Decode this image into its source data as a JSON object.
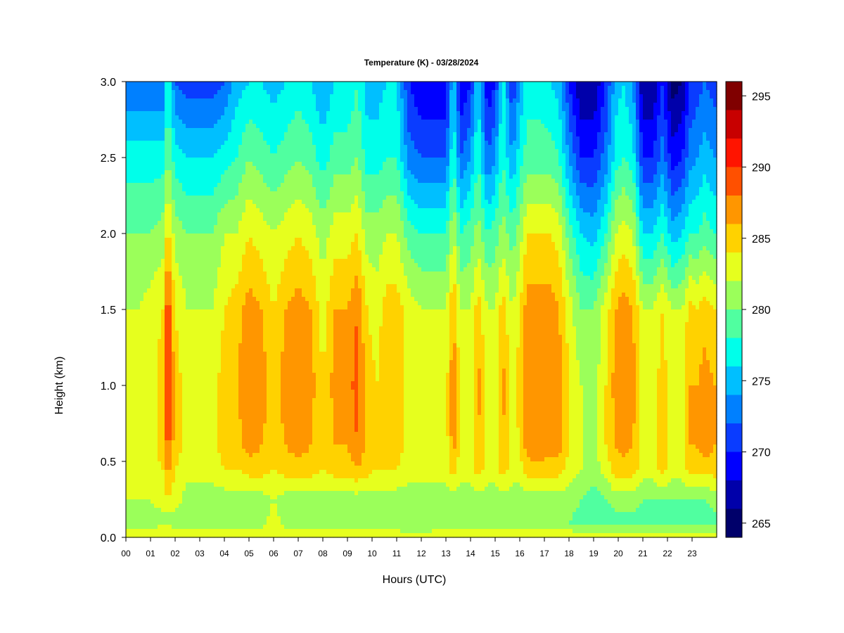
{
  "chart_data": {
    "type": "heatmap",
    "title": "Temperature (K) - 03/28/2024",
    "xlabel": "Hours (UTC)",
    "ylabel": "Height (km)",
    "xlim": [
      0,
      24
    ],
    "ylim": [
      0,
      3.0
    ],
    "x_ticks": [
      "00",
      "01",
      "02",
      "03",
      "04",
      "05",
      "06",
      "07",
      "08",
      "09",
      "10",
      "11",
      "12",
      "13",
      "14",
      "15",
      "16",
      "17",
      "18",
      "19",
      "20",
      "21",
      "22",
      "23"
    ],
    "y_ticks": [
      "0.0",
      "0.5",
      "1.0",
      "1.5",
      "2.0",
      "2.5",
      "3.0"
    ],
    "grid": false,
    "z_unit": "K",
    "colorbar": {
      "min": 264,
      "max": 296,
      "step": 2,
      "ticks": [
        "265",
        "270",
        "275",
        "280",
        "285",
        "290",
        "295"
      ],
      "colors": [
        "#00006a",
        "#0000aa",
        "#0000ff",
        "#0a3cff",
        "#0080ff",
        "#00bfff",
        "#00ffea",
        "#50ffa0",
        "#9bff5a",
        "#e6ff1e",
        "#ffd200",
        "#ff9600",
        "#ff5000",
        "#ff1400",
        "#c80000",
        "#800000"
      ]
    },
    "hours": [
      0.0,
      0.5,
      1.0,
      1.5,
      1.7,
      2.0,
      2.5,
      3.0,
      3.5,
      4.0,
      4.5,
      5.0,
      5.5,
      6.0,
      6.5,
      7.0,
      7.5,
      8.0,
      8.5,
      9.0,
      9.4,
      9.8,
      10.2,
      10.6,
      11.0,
      11.5,
      12.0,
      12.5,
      13.0,
      13.3,
      13.6,
      14.0,
      14.3,
      14.7,
      15.0,
      15.3,
      15.7,
      16.0,
      16.3,
      16.8,
      17.2,
      17.6,
      18.0,
      18.5,
      19.0,
      19.5,
      19.9,
      20.2,
      20.6,
      21.0,
      21.4,
      21.8,
      22.2,
      22.6,
      22.9,
      23.2,
      23.5,
      23.9
    ],
    "heights_km": [
      0.0,
      0.05,
      0.1,
      0.25,
      0.45,
      0.6,
      1.0,
      1.5,
      2.0,
      2.5,
      3.0
    ],
    "temperature_K": [
      [
        283,
        283,
        283,
        283,
        283,
        283,
        283,
        283,
        283,
        283,
        283,
        283,
        283,
        283,
        283,
        283,
        283,
        283,
        283,
        283,
        283,
        283,
        283,
        283,
        283,
        283,
        283,
        283,
        283,
        283,
        283,
        283,
        283,
        283,
        283,
        283,
        283,
        283,
        283,
        283,
        283,
        283,
        283,
        283,
        283,
        283,
        283,
        283,
        283,
        283,
        283,
        283,
        283,
        283,
        283,
        283,
        283,
        283
      ],
      [
        282,
        282,
        282,
        283,
        283,
        282,
        282,
        282,
        282,
        282,
        282,
        282,
        282,
        283,
        282,
        282,
        282,
        282,
        282,
        282,
        282,
        282,
        282,
        282,
        282,
        281,
        281,
        282,
        282,
        282,
        282,
        282,
        282,
        282,
        282,
        282,
        282,
        282,
        282,
        282,
        282,
        282,
        282,
        281,
        281,
        281,
        281,
        281,
        281,
        281,
        281,
        281,
        281,
        281,
        281,
        281,
        281,
        281
      ],
      [
        281,
        281,
        281,
        281,
        281,
        281,
        281,
        281,
        281,
        281,
        281,
        281,
        281,
        283,
        281,
        281,
        281,
        281,
        281,
        281,
        281,
        281,
        281,
        281,
        280,
        280,
        281,
        281,
        281,
        281,
        281,
        281,
        281,
        281,
        281,
        281,
        281,
        281,
        281,
        281,
        281,
        281,
        280,
        279,
        279,
        279,
        279,
        279,
        279,
        279,
        279,
        279,
        279,
        279,
        279,
        279,
        279,
        279
      ],
      [
        282,
        282,
        282,
        283,
        284,
        283,
        281,
        281,
        281,
        281,
        281,
        281,
        281,
        282,
        281,
        281,
        281,
        281,
        281,
        281,
        281,
        281,
        281,
        281,
        281,
        281,
        281,
        281,
        281,
        281,
        281,
        281,
        281,
        281,
        281,
        281,
        281,
        281,
        281,
        281,
        281,
        281,
        281,
        280,
        279,
        280,
        281,
        281,
        281,
        280,
        280,
        280,
        280,
        280,
        280,
        280,
        280,
        281
      ],
      [
        283,
        283,
        283,
        284,
        287,
        284,
        283,
        283,
        283,
        284,
        284,
        285,
        285,
        284,
        285,
        285,
        285,
        284,
        285,
        285,
        286,
        285,
        284,
        284,
        284,
        283,
        283,
        283,
        283,
        285,
        283,
        283,
        285,
        283,
        283,
        285,
        283,
        283,
        285,
        285,
        285,
        285,
        283,
        282,
        281,
        283,
        285,
        285,
        285,
        283,
        283,
        285,
        283,
        283,
        285,
        285,
        285,
        285
      ],
      [
        283,
        283,
        283,
        285,
        289,
        285,
        283,
        283,
        283,
        285,
        285,
        287,
        286,
        285,
        286,
        287,
        286,
        284,
        286,
        286,
        288,
        285,
        284,
        285,
        285,
        283,
        283,
        283,
        283,
        287,
        283,
        283,
        286,
        283,
        283,
        286,
        283,
        284,
        287,
        288,
        287,
        287,
        284,
        282,
        281,
        284,
        286,
        287,
        286,
        283,
        283,
        285,
        283,
        283,
        286,
        286,
        287,
        286
      ],
      [
        283,
        283,
        283,
        285,
        291,
        285,
        283,
        283,
        283,
        285,
        286,
        288,
        287,
        285,
        287,
        288,
        287,
        284,
        287,
        287,
        289,
        285,
        284,
        286,
        286,
        283,
        283,
        283,
        283,
        288,
        283,
        283,
        287,
        283,
        283,
        287,
        283,
        285,
        288,
        288,
        288,
        287,
        284,
        282,
        281,
        284,
        287,
        288,
        287,
        283,
        283,
        285,
        283,
        283,
        286,
        286,
        287,
        286
      ],
      [
        282,
        282,
        283,
        284,
        290,
        284,
        282,
        282,
        282,
        284,
        285,
        287,
        286,
        284,
        286,
        287,
        286,
        283,
        286,
        286,
        288,
        284,
        283,
        285,
        285,
        283,
        282,
        282,
        282,
        286,
        282,
        282,
        285,
        282,
        282,
        285,
        282,
        284,
        287,
        287,
        287,
        286,
        283,
        280,
        280,
        283,
        286,
        287,
        286,
        282,
        282,
        284,
        282,
        282,
        285,
        284,
        285,
        284
      ],
      [
        280,
        280,
        280,
        281,
        285,
        281,
        280,
        280,
        280,
        282,
        282,
        284,
        283,
        282,
        283,
        284,
        283,
        281,
        283,
        283,
        284,
        281,
        281,
        282,
        282,
        279,
        278,
        278,
        278,
        282,
        278,
        279,
        281,
        278,
        279,
        281,
        279,
        281,
        284,
        284,
        284,
        283,
        279,
        276,
        275,
        278,
        282,
        283,
        282,
        276,
        276,
        278,
        275,
        276,
        278,
        278,
        279,
        278
      ],
      [
        277,
        277,
        277,
        277,
        280,
        277,
        276,
        276,
        276,
        277,
        278,
        280,
        279,
        278,
        279,
        280,
        279,
        277,
        279,
        279,
        280,
        277,
        277,
        278,
        278,
        273,
        272,
        272,
        272,
        278,
        272,
        274,
        278,
        272,
        274,
        278,
        274,
        277,
        279,
        279,
        279,
        278,
        274,
        270,
        270,
        273,
        277,
        278,
        277,
        270,
        270,
        273,
        269,
        270,
        273,
        274,
        275,
        274
      ],
      [
        272,
        272,
        272,
        272,
        278,
        272,
        271,
        271,
        271,
        272,
        275,
        276,
        276,
        275,
        276,
        277,
        276,
        274,
        276,
        276,
        278,
        275,
        275,
        276,
        276,
        270,
        268,
        268,
        268,
        276,
        268,
        270,
        276,
        268,
        270,
        277,
        270,
        274,
        277,
        277,
        276,
        275,
        270,
        266,
        266,
        270,
        275,
        276,
        274,
        266,
        266,
        270,
        265,
        266,
        270,
        271,
        272,
        271
      ]
    ]
  }
}
